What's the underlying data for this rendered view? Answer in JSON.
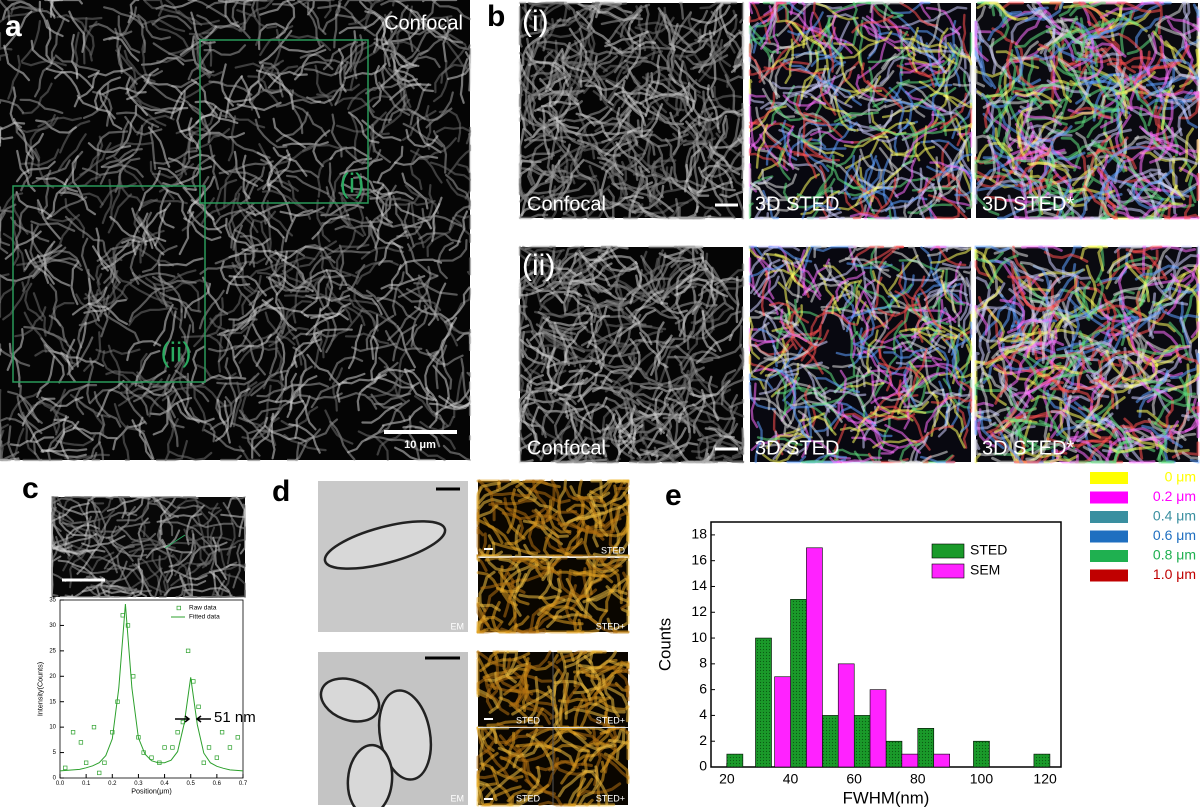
{
  "panels": {
    "a": {
      "label": "a",
      "title": "Confocal",
      "roi": [
        "(i)",
        "(ii)"
      ],
      "scale_bar": "10 μm"
    },
    "b": {
      "label": "b",
      "rows": [
        {
          "roi": "(i)",
          "images": [
            "Confocal",
            "3D STED",
            "3D STED*"
          ]
        },
        {
          "roi": "(ii)",
          "images": [
            "Confocal",
            "3D STED",
            "3D STED*"
          ]
        }
      ]
    },
    "c": {
      "label": "c"
    },
    "d": {
      "label": "d",
      "images": [
        "EM",
        "STED",
        "STED+",
        "EM",
        "STED",
        "STED+",
        "STED",
        "STED+"
      ]
    },
    "e": {
      "label": "e"
    },
    "depth_legend": [
      {
        "label": "0 μm",
        "color": "#ffff00"
      },
      {
        "label": "0.2 μm",
        "color": "#ff00ff"
      },
      {
        "label": "0.4 μm",
        "color": "#3a8fa0"
      },
      {
        "label": "0.6 μm",
        "color": "#1f6fc0"
      },
      {
        "label": "0.8 μm",
        "color": "#1fb050"
      },
      {
        "label": "1.0 μm",
        "color": "#c00000"
      }
    ]
  },
  "chart_data": [
    {
      "type": "line",
      "xlabel": "Position(μm)",
      "ylabel": "Intensity(Counts)",
      "xlim": [
        0,
        0.7
      ],
      "xticks": [
        {
          "value": 0,
          "label": "0.0"
        },
        0.1,
        0.2,
        0.3,
        0.4,
        0.5,
        0.6,
        0.7
      ],
      "ylim": [
        0,
        35
      ],
      "yticks": [
        0,
        5,
        10,
        15,
        20,
        25,
        30,
        35
      ],
      "annotation": "51 nm",
      "legend": "upper right",
      "series": [
        {
          "name": "Raw data",
          "mode": "markers",
          "color": "#2ca02c",
          "x": [
            0.02,
            0.05,
            0.08,
            0.1,
            0.13,
            0.15,
            0.17,
            0.2,
            0.22,
            0.24,
            0.26,
            0.28,
            0.3,
            0.32,
            0.35,
            0.38,
            0.4,
            0.43,
            0.45,
            0.47,
            0.49,
            0.51,
            0.53,
            0.55,
            0.57,
            0.6,
            0.62,
            0.65,
            0.68
          ],
          "values": [
            2,
            9,
            7,
            3,
            10,
            1,
            3,
            9,
            15,
            32,
            30,
            20,
            8,
            5,
            4,
            3,
            6,
            6,
            9,
            11,
            25,
            19,
            14,
            3,
            6,
            4,
            9,
            6,
            8
          ]
        },
        {
          "name": "Fitted data",
          "mode": "line",
          "color": "#2ca02c",
          "x": [
            0,
            0.025,
            0.05,
            0.075,
            0.1,
            0.125,
            0.15,
            0.175,
            0.2,
            0.225,
            0.25,
            0.275,
            0.3,
            0.325,
            0.35,
            0.375,
            0.4,
            0.425,
            0.45,
            0.475,
            0.5,
            0.525,
            0.55,
            0.575,
            0.6,
            0.625,
            0.65,
            0.675,
            0.7
          ],
          "values": [
            1.4,
            1.5,
            1.6,
            1.7,
            2.0,
            2.4,
            3.0,
            4.4,
            7.7,
            17.7,
            34.2,
            17.7,
            7.9,
            4.7,
            3.4,
            3.0,
            3.0,
            3.5,
            5.2,
            10.7,
            19.8,
            10.5,
            4.9,
            3.0,
            2.3,
            1.9,
            1.6,
            1.5,
            1.4
          ]
        }
      ]
    },
    {
      "type": "bar",
      "xlabel": "FWHM(nm)",
      "ylabel": "Counts",
      "xlim": [
        15,
        125
      ],
      "xticks": [
        20,
        40,
        60,
        80,
        100,
        120
      ],
      "ylim": [
        0,
        19
      ],
      "yticks": [
        0,
        2,
        4,
        6,
        8,
        10,
        12,
        14,
        16,
        18
      ],
      "legend": "upper right",
      "series": [
        {
          "name": "STED",
          "color": "#1a9a2a",
          "x": [
            22.5,
            31.5,
            42.5,
            52.5,
            62.5,
            72.5,
            82.5,
            100,
            119
          ],
          "values": [
            1,
            10,
            13,
            4,
            4,
            2,
            3,
            2,
            1
          ]
        },
        {
          "name": "SEM",
          "color": "#ff22ff",
          "x": [
            37.5,
            47.5,
            57.5,
            67.5,
            77.5,
            87.5
          ],
          "values": [
            7,
            17,
            8,
            6,
            1,
            1
          ]
        }
      ]
    }
  ]
}
